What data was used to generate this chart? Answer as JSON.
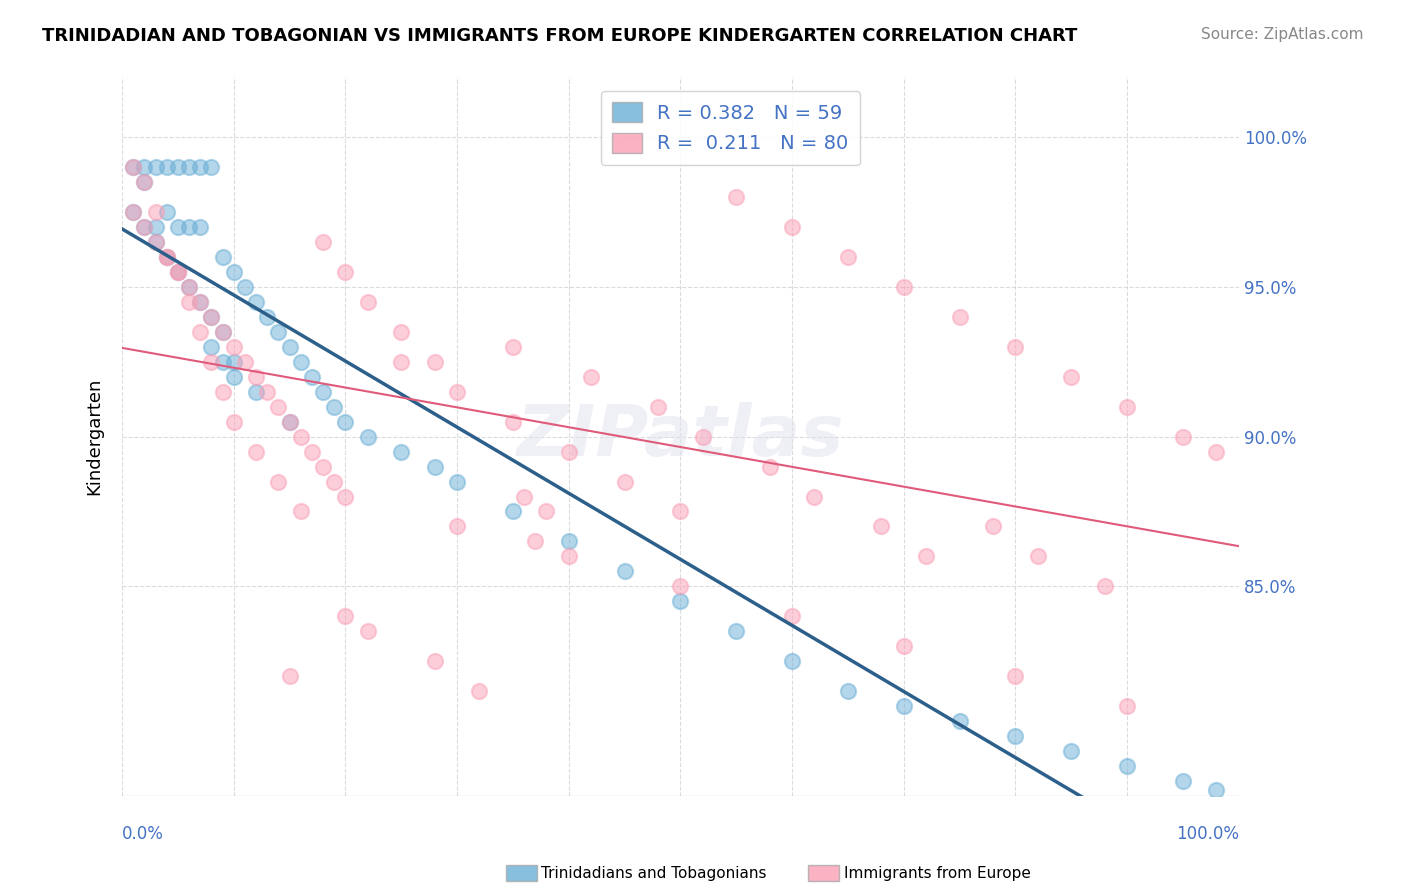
{
  "title": "TRINIDADIAN AND TOBAGONIAN VS IMMIGRANTS FROM EUROPE KINDERGARTEN CORRELATION CHART",
  "source": "Source: ZipAtlas.com",
  "ylabel": "Kindergarten",
  "legend_blue_R": "0.382",
  "legend_blue_N": "59",
  "legend_pink_R": "0.211",
  "legend_pink_N": "80",
  "legend_label_blue": "Trinidadians and Tobagonians",
  "legend_label_pink": "Immigrants from Europe",
  "blue_color": "#6baed6",
  "pink_color": "#fa9fb5",
  "blue_line_color": "#2c5f8a",
  "pink_line_color": "#e05a7a",
  "xlim": [
    0.0,
    1.0
  ],
  "ylim": [
    0.78,
    1.02
  ],
  "blue_scatter_x": [
    0.01,
    0.02,
    0.02,
    0.03,
    0.03,
    0.04,
    0.04,
    0.05,
    0.05,
    0.06,
    0.06,
    0.07,
    0.07,
    0.08,
    0.09,
    0.1,
    0.11,
    0.12,
    0.13,
    0.14,
    0.15,
    0.16,
    0.17,
    0.18,
    0.19,
    0.2,
    0.22,
    0.25,
    0.28,
    0.3,
    0.35,
    0.4,
    0.45,
    0.5,
    0.55,
    0.6,
    0.65,
    0.7,
    0.75,
    0.8,
    0.85,
    0.9,
    0.95,
    0.98,
    0.01,
    0.02,
    0.03,
    0.04,
    0.05,
    0.06,
    0.07,
    0.08,
    0.09,
    0.1,
    0.12,
    0.15,
    0.08,
    0.09,
    0.1
  ],
  "blue_scatter_y": [
    0.99,
    0.99,
    0.985,
    0.99,
    0.97,
    0.99,
    0.975,
    0.99,
    0.97,
    0.99,
    0.97,
    0.99,
    0.97,
    0.99,
    0.96,
    0.955,
    0.95,
    0.945,
    0.94,
    0.935,
    0.93,
    0.925,
    0.92,
    0.915,
    0.91,
    0.905,
    0.9,
    0.895,
    0.89,
    0.885,
    0.875,
    0.865,
    0.855,
    0.845,
    0.835,
    0.825,
    0.815,
    0.81,
    0.805,
    0.8,
    0.795,
    0.79,
    0.785,
    0.782,
    0.975,
    0.97,
    0.965,
    0.96,
    0.955,
    0.95,
    0.945,
    0.94,
    0.935,
    0.925,
    0.915,
    0.905,
    0.93,
    0.925,
    0.92
  ],
  "pink_scatter_x": [
    0.01,
    0.02,
    0.03,
    0.04,
    0.05,
    0.06,
    0.07,
    0.08,
    0.09,
    0.1,
    0.12,
    0.14,
    0.16,
    0.18,
    0.2,
    0.22,
    0.25,
    0.28,
    0.3,
    0.35,
    0.4,
    0.45,
    0.5,
    0.55,
    0.6,
    0.65,
    0.7,
    0.75,
    0.8,
    0.85,
    0.9,
    0.95,
    0.98,
    0.01,
    0.02,
    0.03,
    0.04,
    0.05,
    0.06,
    0.07,
    0.08,
    0.09,
    0.1,
    0.11,
    0.12,
    0.13,
    0.14,
    0.15,
    0.16,
    0.17,
    0.18,
    0.19,
    0.2,
    0.3,
    0.4,
    0.5,
    0.6,
    0.7,
    0.8,
    0.9,
    0.35,
    0.36,
    0.37,
    0.2,
    0.25,
    0.15,
    0.22,
    0.28,
    0.32,
    0.38,
    0.42,
    0.48,
    0.52,
    0.58,
    0.62,
    0.68,
    0.72,
    0.78,
    0.82,
    0.88
  ],
  "pink_scatter_y": [
    0.99,
    0.985,
    0.975,
    0.96,
    0.955,
    0.945,
    0.935,
    0.925,
    0.915,
    0.905,
    0.895,
    0.885,
    0.875,
    0.965,
    0.955,
    0.945,
    0.935,
    0.925,
    0.915,
    0.905,
    0.895,
    0.885,
    0.875,
    0.98,
    0.97,
    0.96,
    0.95,
    0.94,
    0.93,
    0.92,
    0.91,
    0.9,
    0.895,
    0.975,
    0.97,
    0.965,
    0.96,
    0.955,
    0.95,
    0.945,
    0.94,
    0.935,
    0.93,
    0.925,
    0.92,
    0.915,
    0.91,
    0.905,
    0.9,
    0.895,
    0.89,
    0.885,
    0.88,
    0.87,
    0.86,
    0.85,
    0.84,
    0.83,
    0.82,
    0.81,
    0.93,
    0.88,
    0.865,
    0.84,
    0.925,
    0.82,
    0.835,
    0.825,
    0.815,
    0.875,
    0.92,
    0.91,
    0.9,
    0.89,
    0.88,
    0.87,
    0.86,
    0.87,
    0.86,
    0.85
  ]
}
